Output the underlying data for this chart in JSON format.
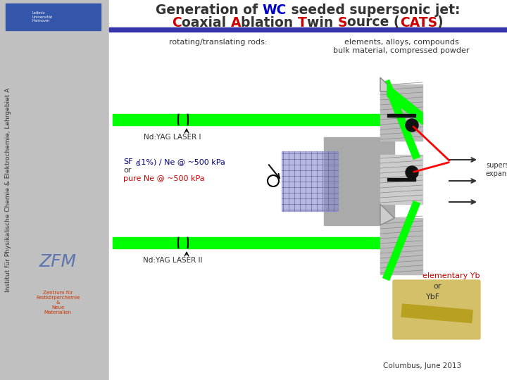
{
  "title_line1": "Generation of WC seeded supersonic jet:",
  "title_line2": "Coaxial Ablation Twin Source (CATS)",
  "title_color": "#333333",
  "wc_color": "#0000cc",
  "C_color": "#cc0000",
  "A_color": "#cc0000",
  "T_color": "#cc0000",
  "S_color": "#cc0000",
  "CATS_color": "#cc0000",
  "bg_color": "#f0f0f0",
  "sidebar_color": "#c0c0c0",
  "header_bar_color": "#3333aa",
  "green_laser": "#00ff00",
  "label_rotating": "rotating/translating rods:",
  "label_elements": "elements, alloys, compounds",
  "label_bulk": "bulk material, compressed powder",
  "label_laser1": "Nd:YAG LASER I",
  "label_laser2": "Nd:YAG LASER II",
  "label_sf6_line1": "SF",
  "label_sf6_6": "6",
  "label_sf6_rest": "(1%) / Ne @ ~500 kPa",
  "label_or1": "or",
  "label_pure": "pure Ne @ ~500 kPa",
  "label_supersonic": "supersonic",
  "label_expansion": "expansion",
  "label_elementary": "elementary Yb",
  "label_or2": "or",
  "label_ybf": "YbF",
  "label_columbus": "Columbus, June 2013",
  "label_sidebar": "Institut für Physikalische Chemie & Elektrochemie, Lehrgebiet A",
  "label_zentrum": "Zentrum für\nFestkörperchemie\n&\nNeue\nMaterialien",
  "sf6_color": "#000080",
  "pure_color": "#cc0000",
  "elementary_color": "#cc0000",
  "logo_color": "#3355aa"
}
